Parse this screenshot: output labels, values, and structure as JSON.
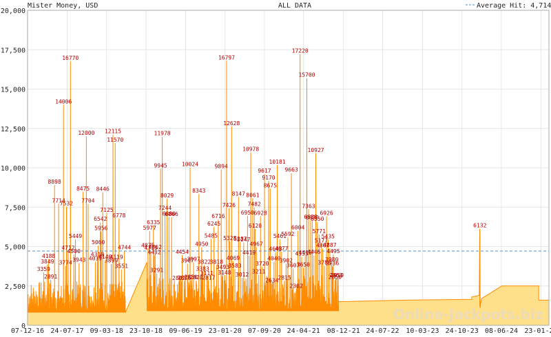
{
  "header": {
    "left_title": "Mister Money, USD",
    "center_title": "ALL DATA",
    "legend_label": "Average Hit: 4,714"
  },
  "watermark": "Online-Jackpots.biz",
  "colors": {
    "line": "#ff8c00",
    "fill": "#ffe08a",
    "average": "#4a90c8",
    "grid": "#e6e6e6",
    "annotation": "#b00000"
  },
  "chart_data": {
    "type": "area",
    "series": [
      {
        "name": "Average Hit: 4,714",
        "type": "hline",
        "value": 4714
      }
    ],
    "ylim": [
      0,
      20000
    ],
    "xlim": [
      "2016-12-07",
      "2025-03-10"
    ],
    "y_ticks": [
      0,
      2500,
      5000,
      7500,
      10000,
      12500,
      15000,
      17500,
      20000
    ],
    "y_tick_labels": [
      "0",
      "2,500",
      "5,000",
      "7,500",
      "10,000",
      "12,500",
      "15,000",
      "17,500",
      "20,000"
    ],
    "x_ticks": [
      "2016-12-07",
      "2017-07-24",
      "2018-03-09",
      "2018-10-23",
      "2019-06-09",
      "2020-01-23",
      "2020-09-07",
      "2021-04-21",
      "2021-12-08",
      "2022-07-22",
      "2023-03-10",
      "2023-10-24",
      "2024-06-08",
      "2025-01-23"
    ],
    "x_tick_labels": [
      "07-12-16",
      "24-07-17",
      "09-03-18",
      "23-10-18",
      "09-06-19",
      "23-01-20",
      "07-09-20",
      "24-04-21",
      "08-12-21",
      "24-07-22",
      "10-03-23",
      "24-10-23",
      "08-06-24",
      "23-01-25"
    ],
    "grid": true,
    "annotated_peaks": [
      {
        "x": "2017-03-10",
        "value": 3359
      },
      {
        "x": "2017-04-01",
        "value": 3849
      },
      {
        "x": "2017-04-08",
        "value": 4188
      },
      {
        "x": "2017-04-20",
        "value": 2891
      },
      {
        "x": "2017-05-12",
        "value": 8898
      },
      {
        "x": "2017-06-05",
        "value": 7714
      },
      {
        "x": "2017-07-03",
        "value": 14006
      },
      {
        "x": "2017-07-15",
        "value": 3774
      },
      {
        "x": "2017-07-20",
        "value": 7532
      },
      {
        "x": "2017-07-30",
        "value": 4712
      },
      {
        "x": "2017-08-12",
        "value": 16770
      },
      {
        "x": "2017-09-01",
        "value": 4500
      },
      {
        "x": "2017-09-10",
        "value": 5449
      },
      {
        "x": "2017-10-01",
        "value": 3943
      },
      {
        "x": "2017-10-24",
        "value": 8475
      },
      {
        "x": "2017-11-12",
        "value": 12000
      },
      {
        "x": "2017-11-22",
        "value": 7704
      },
      {
        "x": "2018-01-03",
        "value": 4039
      },
      {
        "x": "2018-01-15",
        "value": 4310
      },
      {
        "x": "2018-01-20",
        "value": 5060
      },
      {
        "x": "2018-02-15",
        "value": 8446
      },
      {
        "x": "2018-02-01",
        "value": 6542
      },
      {
        "x": "2018-02-05",
        "value": 5956
      },
      {
        "x": "2018-03-01",
        "value": 4140
      },
      {
        "x": "2018-03-10",
        "value": 7125
      },
      {
        "x": "2018-04-05",
        "value": 3899
      },
      {
        "x": "2018-04-15",
        "value": 12115
      },
      {
        "x": "2018-04-28",
        "value": 11570
      },
      {
        "x": "2018-05-05",
        "value": 4119
      },
      {
        "x": "2018-05-20",
        "value": 6778
      },
      {
        "x": "2018-06-03",
        "value": 3551
      },
      {
        "x": "2018-06-20",
        "value": 4744
      },
      {
        "x": "2018-11-03",
        "value": 4875
      },
      {
        "x": "2018-11-13",
        "value": 5977
      },
      {
        "x": "2018-11-20",
        "value": 4716
      },
      {
        "x": "2018-12-05",
        "value": 6335
      },
      {
        "x": "2018-12-10",
        "value": 4432
      },
      {
        "x": "2018-12-15",
        "value": 4762
      },
      {
        "x": "2018-12-24",
        "value": 3291
      },
      {
        "x": "2019-01-15",
        "value": 9945
      },
      {
        "x": "2019-01-25",
        "value": 11978
      },
      {
        "x": "2019-02-10",
        "value": 7244
      },
      {
        "x": "2019-02-22",
        "value": 8029
      },
      {
        "x": "2019-03-05",
        "value": 6880
      },
      {
        "x": "2019-03-20",
        "value": 6866
      },
      {
        "x": "2019-05-01",
        "value": 2802
      },
      {
        "x": "2019-05-20",
        "value": 4454
      },
      {
        "x": "2019-06-01",
        "value": 2818
      },
      {
        "x": "2019-06-20",
        "value": 3907
      },
      {
        "x": "2019-07-05",
        "value": 10024
      },
      {
        "x": "2019-07-10",
        "value": 2850
      },
      {
        "x": "2019-07-25",
        "value": 3997
      },
      {
        "x": "2019-08-10",
        "value": 2828
      },
      {
        "x": "2019-08-25",
        "value": 8343
      },
      {
        "x": "2019-09-10",
        "value": 4950
      },
      {
        "x": "2019-09-15",
        "value": 3383
      },
      {
        "x": "2019-09-25",
        "value": 3822
      },
      {
        "x": "2019-10-10",
        "value": 3111
      },
      {
        "x": "2019-10-20",
        "value": 2817
      },
      {
        "x": "2019-11-03",
        "value": 5485
      },
      {
        "x": "2019-11-20",
        "value": 6245
      },
      {
        "x": "2019-12-05",
        "value": 3818
      },
      {
        "x": "2019-12-15",
        "value": 6716
      },
      {
        "x": "2020-01-01",
        "value": 9894
      },
      {
        "x": "2020-01-10",
        "value": 3493
      },
      {
        "x": "2020-01-20",
        "value": 3148
      },
      {
        "x": "2020-02-01",
        "value": 16797
      },
      {
        "x": "2020-02-15",
        "value": 7426
      },
      {
        "x": "2020-02-20",
        "value": 5328
      },
      {
        "x": "2020-03-01",
        "value": 12628
      },
      {
        "x": "2020-03-10",
        "value": 4069
      },
      {
        "x": "2020-03-20",
        "value": 3583
      },
      {
        "x": "2020-04-10",
        "value": 8147
      },
      {
        "x": "2020-04-20",
        "value": 5287
      },
      {
        "x": "2020-05-01",
        "value": 3012
      },
      {
        "x": "2020-05-10",
        "value": 5247
      },
      {
        "x": "2020-06-01",
        "value": 6950
      },
      {
        "x": "2020-06-10",
        "value": 4419
      },
      {
        "x": "2020-06-20",
        "value": 10978
      },
      {
        "x": "2020-07-01",
        "value": 8061
      },
      {
        "x": "2020-07-10",
        "value": 7482
      },
      {
        "x": "2020-07-15",
        "value": 6120
      },
      {
        "x": "2020-07-22",
        "value": 4967
      },
      {
        "x": "2020-08-05",
        "value": 3211
      },
      {
        "x": "2020-08-15",
        "value": 6928
      },
      {
        "x": "2020-08-25",
        "value": 3720
      },
      {
        "x": "2020-09-07",
        "value": 9617
      },
      {
        "x": "2020-10-01",
        "value": 9170
      },
      {
        "x": "2020-10-10",
        "value": 8675
      },
      {
        "x": "2020-10-20",
        "value": 2634
      },
      {
        "x": "2020-11-01",
        "value": 4040
      },
      {
        "x": "2020-11-10",
        "value": 4643
      },
      {
        "x": "2020-11-20",
        "value": 10181
      },
      {
        "x": "2020-12-05",
        "value": 5461
      },
      {
        "x": "2020-12-15",
        "value": 4677
      },
      {
        "x": "2021-01-01",
        "value": 2815
      },
      {
        "x": "2021-01-10",
        "value": 3902
      },
      {
        "x": "2021-01-20",
        "value": 5592
      },
      {
        "x": "2021-02-10",
        "value": 9663
      },
      {
        "x": "2021-02-20",
        "value": 3607
      },
      {
        "x": "2021-03-10",
        "value": 2302
      },
      {
        "x": "2021-03-20",
        "value": 6004
      },
      {
        "x": "2021-04-01",
        "value": 17220
      },
      {
        "x": "2021-04-10",
        "value": 4335
      },
      {
        "x": "2021-04-20",
        "value": 3650
      },
      {
        "x": "2021-05-01",
        "value": 4415
      },
      {
        "x": "2021-05-10",
        "value": 15700
      },
      {
        "x": "2021-05-20",
        "value": 7363
      },
      {
        "x": "2021-06-01",
        "value": 6688
      },
      {
        "x": "2021-06-10",
        "value": 6630
      },
      {
        "x": "2021-06-20",
        "value": 4446
      },
      {
        "x": "2021-07-01",
        "value": 10927
      },
      {
        "x": "2021-07-10",
        "value": 6550
      },
      {
        "x": "2021-07-20",
        "value": 5771
      },
      {
        "x": "2021-08-01",
        "value": 5177
      },
      {
        "x": "2021-08-10",
        "value": 4867
      },
      {
        "x": "2021-08-20",
        "value": 3788
      },
      {
        "x": "2021-09-01",
        "value": 6926
      },
      {
        "x": "2021-09-10",
        "value": 5435
      },
      {
        "x": "2021-09-20",
        "value": 4887
      },
      {
        "x": "2021-10-01",
        "value": 3980
      },
      {
        "x": "2021-10-05",
        "value": 3736
      },
      {
        "x": "2021-10-10",
        "value": 4495
      },
      {
        "x": "2021-10-20",
        "value": 2850
      },
      {
        "x": "2021-10-25",
        "value": 2963
      },
      {
        "x": "2021-11-01",
        "value": 2959
      },
      {
        "x": "2024-02-05",
        "value": 6132
      }
    ]
  }
}
